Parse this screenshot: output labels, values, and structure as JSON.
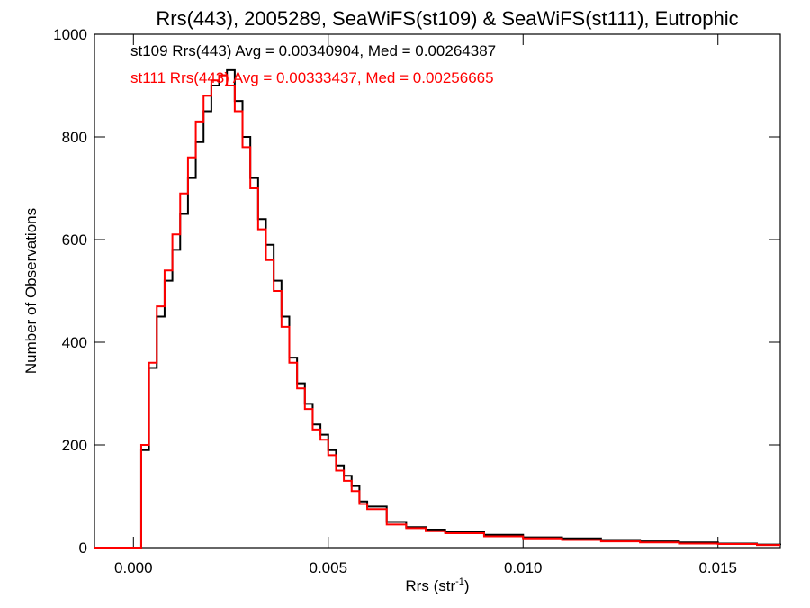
{
  "chart_data": {
    "type": "line",
    "title": "Rrs(443), 2005289, SeaWiFS(st109) & SeaWiFS(st111), Eutrophic",
    "xlabel": "Rrs (str",
    "xlabel_sup": "-1",
    "xlabel_close": ")",
    "ylabel": "Number of Observations",
    "xlim": [
      -0.001,
      0.0166
    ],
    "ylim": [
      0,
      1000
    ],
    "x_ticks": [
      0.0,
      0.005,
      0.01,
      0.015
    ],
    "x_tick_labels": [
      "0.000",
      "0.005",
      "0.010",
      "0.015"
    ],
    "y_ticks": [
      0,
      200,
      400,
      600,
      800,
      1000
    ],
    "y_tick_labels": [
      "0",
      "200",
      "400",
      "600",
      "800",
      "1000"
    ],
    "grid": false,
    "legend_position": "top-left, inside plot",
    "series": [
      {
        "name": "st109",
        "color": "#000000",
        "annotation": "st109 Rrs(443) Avg = 0.00340904, Med = 0.00264387",
        "x": [
          -0.001,
          0.0,
          0.0002,
          0.0004,
          0.0006,
          0.0008,
          0.001,
          0.0012,
          0.0014,
          0.0016,
          0.0018,
          0.002,
          0.0022,
          0.0024,
          0.0026,
          0.0028,
          0.003,
          0.0032,
          0.0034,
          0.0036,
          0.0038,
          0.004,
          0.0042,
          0.0044,
          0.0046,
          0.0048,
          0.005,
          0.0052,
          0.0054,
          0.0056,
          0.0058,
          0.006,
          0.0065,
          0.007,
          0.0075,
          0.008,
          0.009,
          0.01,
          0.011,
          0.012,
          0.013,
          0.014,
          0.015,
          0.016,
          0.0166
        ],
        "y": [
          0,
          0,
          190,
          350,
          450,
          520,
          580,
          650,
          720,
          790,
          850,
          900,
          920,
          930,
          870,
          800,
          720,
          640,
          590,
          520,
          450,
          370,
          320,
          280,
          240,
          220,
          190,
          160,
          140,
          120,
          90,
          80,
          50,
          40,
          35,
          30,
          25,
          20,
          18,
          15,
          12,
          10,
          8,
          6,
          5
        ]
      },
      {
        "name": "st111",
        "color": "#ff0000",
        "annotation": "st111 Rrs(443) Avg = 0.00333437, Med = 0.00256665",
        "x": [
          -0.001,
          0.0,
          0.0002,
          0.0004,
          0.0006,
          0.0008,
          0.001,
          0.0012,
          0.0014,
          0.0016,
          0.0018,
          0.002,
          0.0022,
          0.0024,
          0.0026,
          0.0028,
          0.003,
          0.0032,
          0.0034,
          0.0036,
          0.0038,
          0.004,
          0.0042,
          0.0044,
          0.0046,
          0.0048,
          0.005,
          0.0052,
          0.0054,
          0.0056,
          0.0058,
          0.006,
          0.0065,
          0.007,
          0.0075,
          0.008,
          0.009,
          0.01,
          0.011,
          0.012,
          0.013,
          0.014,
          0.015,
          0.016,
          0.0166
        ],
        "y": [
          0,
          0,
          200,
          360,
          470,
          540,
          610,
          690,
          760,
          830,
          880,
          910,
          920,
          900,
          850,
          780,
          700,
          620,
          560,
          500,
          430,
          360,
          310,
          270,
          230,
          210,
          180,
          150,
          130,
          110,
          85,
          75,
          45,
          38,
          32,
          28,
          22,
          18,
          15,
          12,
          10,
          8,
          7,
          5,
          5
        ]
      }
    ]
  }
}
